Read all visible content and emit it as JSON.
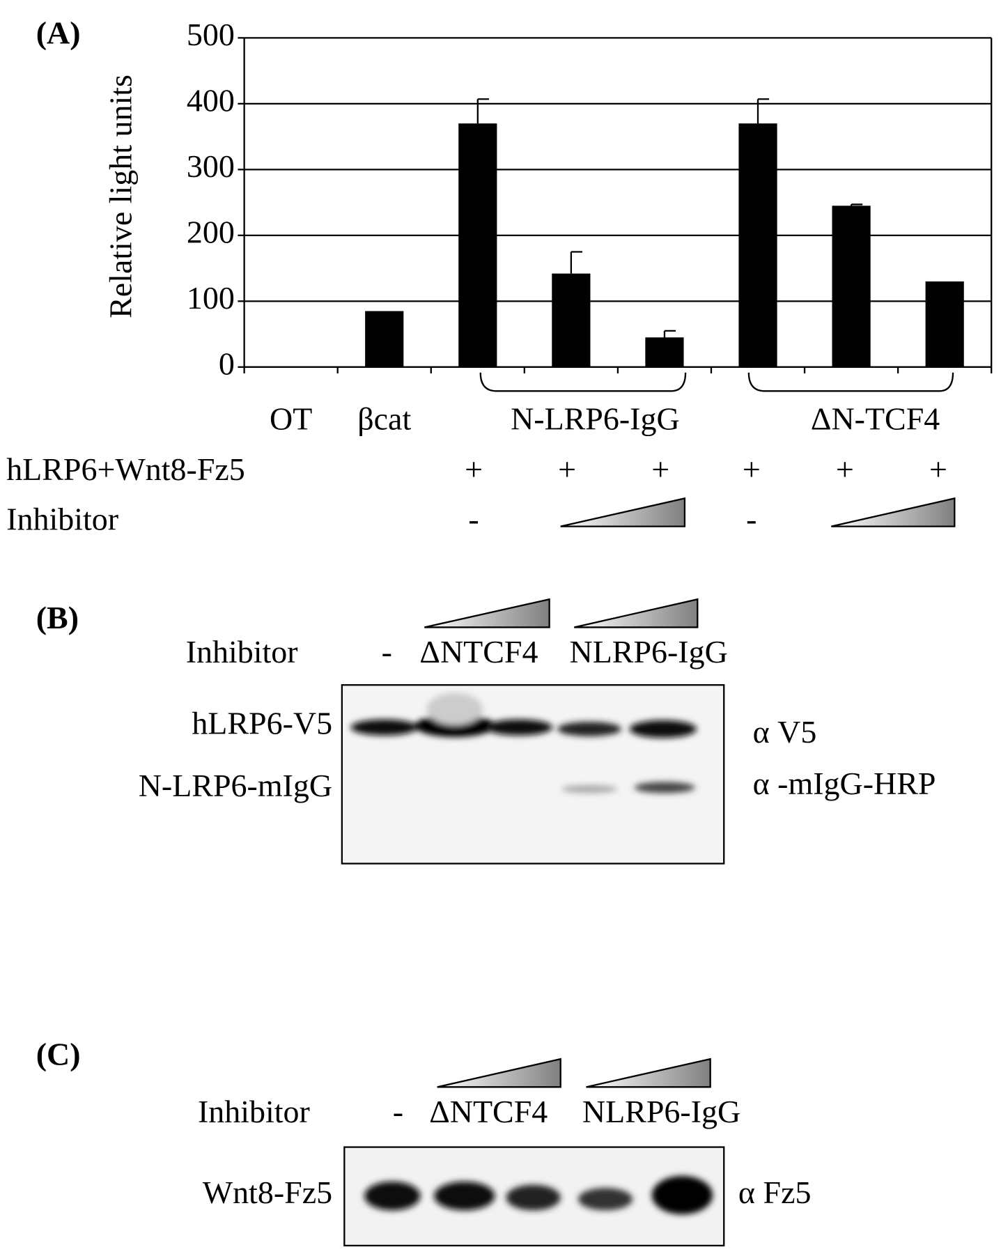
{
  "chart_data": {
    "type": "bar",
    "panel": "(A)",
    "ylabel": "Relative light units",
    "categories": [
      "OT",
      "βcat",
      null,
      "N-LRP6-IgG",
      null,
      null,
      "ΔN-TCF4",
      null
    ],
    "values": [
      0,
      85,
      370,
      142,
      45,
      370,
      245,
      130
    ],
    "errors": [
      null,
      null,
      37,
      33,
      10,
      37,
      2,
      null
    ],
    "color": "#000000",
    "ylim": [
      0,
      500
    ],
    "yticks": [
      0,
      100,
      200,
      300,
      400,
      500
    ],
    "grid": true,
    "condition_rows": [
      {
        "label": "hLRP6+Wnt8-Fz5",
        "marks": [
          null,
          null,
          "+",
          "+",
          "+",
          "+",
          "+",
          "+"
        ]
      },
      {
        "label": "Inhibitor",
        "marks": [
          null,
          null,
          "-",
          null,
          null,
          "-",
          null,
          null
        ]
      }
    ]
  },
  "blots": [
    {
      "panel": "(B)",
      "inhibitor_label": "Inhibitor",
      "lane_labels": [
        "-",
        "ΔNTCF4",
        "NLRP6-IgG"
      ],
      "band_labels": [
        "hLRP6-V5",
        "N-LRP6-mIgG"
      ],
      "antibody_labels": [
        "α V5",
        "α -mIgG-HRP"
      ]
    },
    {
      "panel": "(C)",
      "inhibitor_label": "Inhibitor",
      "lane_labels": [
        "-",
        "ΔNTCF4",
        "NLRP6-IgG"
      ],
      "band_labels": [
        "Wnt8-Fz5"
      ],
      "antibody_labels": [
        "α Fz5"
      ]
    }
  ]
}
